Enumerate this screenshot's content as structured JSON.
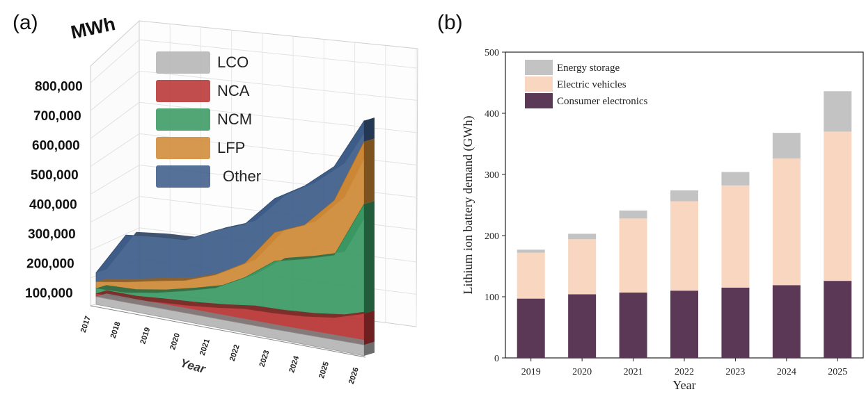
{
  "panels": {
    "a_label": "(a)",
    "b_label": "(b)"
  },
  "chart_data": [
    {
      "type": "area",
      "view": "3d-stacked",
      "unit_label": "MWh",
      "xlabel": "Year",
      "x": [
        "2017",
        "2018",
        "2019",
        "2020",
        "2021",
        "2022",
        "2023",
        "2024",
        "2025",
        "2026"
      ],
      "y_ticks": [
        "100,000",
        "200,000",
        "300,000",
        "400,000",
        "500,000",
        "600,000",
        "700,000",
        "800,000"
      ],
      "ylim": [
        0,
        800000
      ],
      "legend_position": "top-left",
      "series": [
        {
          "name": "LCO",
          "color": "#b5b5b5",
          "values": [
            30000,
            30000,
            32000,
            33000,
            34000,
            35000,
            36000,
            38000,
            40000,
            42000
          ]
        },
        {
          "name": "NCA",
          "color": "#b83434",
          "values": [
            12000,
            13000,
            22000,
            30000,
            42000,
            58000,
            62000,
            70000,
            85000,
            120000
          ]
        },
        {
          "name": "NCM",
          "color": "#3a9a63",
          "values": [
            20000,
            25000,
            35000,
            55000,
            75000,
            120000,
            200000,
            220000,
            240000,
            420000
          ]
        },
        {
          "name": "LFP",
          "color": "#cf8a36",
          "values": [
            25000,
            40000,
            45000,
            40000,
            50000,
            55000,
            110000,
            130000,
            210000,
            240000
          ]
        },
        {
          "name": "Other",
          "color": "#3d5d8a",
          "values": [
            35000,
            180000,
            170000,
            155000,
            170000,
            150000,
            130000,
            150000,
            130000,
            80000
          ]
        }
      ],
      "grid": true
    },
    {
      "type": "bar",
      "stacked": true,
      "xlabel": "Year",
      "ylabel": "Lithium ion battery demand (GWh)",
      "ylim": [
        0,
        500
      ],
      "yticks": [
        0,
        100,
        200,
        300,
        400,
        500
      ],
      "categories": [
        "2019",
        "2020",
        "2021",
        "2022",
        "2023",
        "2024",
        "2025"
      ],
      "legend_position": "top-left",
      "series": [
        {
          "name": "Consumer electronics",
          "color": "#5c3857",
          "values": [
            97,
            104,
            107,
            110,
            115,
            119,
            126
          ]
        },
        {
          "name": "Electric vehicles",
          "color": "#f8d6bf",
          "values": [
            75,
            90,
            121,
            146,
            167,
            207,
            244
          ]
        },
        {
          "name": "Energy storage",
          "color": "#c3c3c3",
          "values": [
            5,
            9,
            13,
            18,
            22,
            42,
            66
          ]
        }
      ],
      "grid": false
    }
  ]
}
